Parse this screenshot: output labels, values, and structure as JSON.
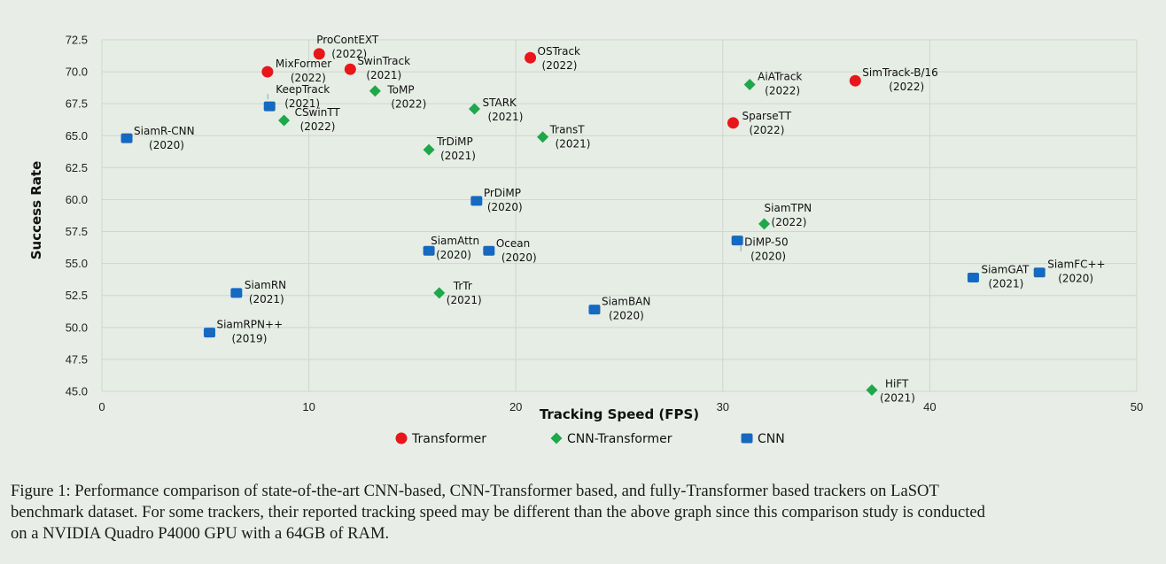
{
  "chart_data": {
    "type": "scatter",
    "xlabel": "Tracking Speed (FPS)",
    "ylabel": "Success Rate",
    "xlim": [
      0,
      50
    ],
    "ylim": [
      45.0,
      72.5
    ],
    "xticks": [
      "0",
      "10",
      "20",
      "30",
      "40",
      "50"
    ],
    "yticks": [
      "45.0",
      "47.5",
      "50.0",
      "52.5",
      "55.0",
      "57.5",
      "60.0",
      "62.5",
      "65.0",
      "67.5",
      "70.0",
      "72.5"
    ],
    "grid": true,
    "legend_position": "bottom",
    "series": [
      {
        "name": "Transformer",
        "marker": "circle",
        "color": "#e8161b",
        "points": [
          {
            "name": "ProContEXT",
            "year": "(2022)",
            "x": 10.5,
            "y": 71.4
          },
          {
            "name": "MixFormer",
            "year": "(2022)",
            "x": 8.0,
            "y": 70.0
          },
          {
            "name": "SwinTrack",
            "year": "(2021)",
            "x": 12.0,
            "y": 70.2
          },
          {
            "name": "OSTrack",
            "year": "(2022)",
            "x": 20.7,
            "y": 71.1
          },
          {
            "name": "SimTrack-B/16",
            "year": "(2022)",
            "x": 36.4,
            "y": 69.3
          },
          {
            "name": "SparseTT",
            "year": "(2022)",
            "x": 30.5,
            "y": 66.0
          }
        ]
      },
      {
        "name": "CNN-Transformer",
        "marker": "diamond",
        "color": "#1ea84a",
        "points": [
          {
            "name": "CSwinTT",
            "year": "(2022)",
            "x": 8.8,
            "y": 66.2
          },
          {
            "name": "ToMP",
            "year": "(2022)",
            "x": 13.2,
            "y": 68.5
          },
          {
            "name": "STARK",
            "year": "(2021)",
            "x": 18.0,
            "y": 67.1
          },
          {
            "name": "TrDiMP",
            "year": "(2021)",
            "x": 15.8,
            "y": 63.9
          },
          {
            "name": "TransT",
            "year": "(2021)",
            "x": 21.3,
            "y": 64.9
          },
          {
            "name": "AiATrack",
            "year": "(2022)",
            "x": 31.3,
            "y": 69.0
          },
          {
            "name": "SiamTPN",
            "year": "(2022)",
            "x": 32.0,
            "y": 58.1
          },
          {
            "name": "TrTr",
            "year": "(2021)",
            "x": 16.3,
            "y": 52.7
          },
          {
            "name": "HiFT",
            "year": "(2021)",
            "x": 37.2,
            "y": 45.1
          }
        ]
      },
      {
        "name": "CNN",
        "marker": "square",
        "color": "#1569c0",
        "points": [
          {
            "name": "KeepTrack",
            "year": "(2021)",
            "x": 8.1,
            "y": 67.3
          },
          {
            "name": "SiamR-CNN",
            "year": "(2020)",
            "x": 1.2,
            "y": 64.8
          },
          {
            "name": "PrDiMP",
            "year": "(2020)",
            "x": 18.1,
            "y": 59.9
          },
          {
            "name": "SiamAttn",
            "year": "(2020)",
            "x": 15.8,
            "y": 56.0
          },
          {
            "name": "Ocean",
            "year": "(2020)",
            "x": 18.7,
            "y": 56.0
          },
          {
            "name": "DiMP-50",
            "year": "(2020)",
            "x": 30.7,
            "y": 56.8
          },
          {
            "name": "SiamRN",
            "year": "(2021)",
            "x": 6.5,
            "y": 52.7
          },
          {
            "name": "SiamRPN++",
            "year": "(2019)",
            "x": 5.2,
            "y": 49.6
          },
          {
            "name": "SiamBAN",
            "year": "(2020)",
            "x": 23.8,
            "y": 51.4
          },
          {
            "name": "SiamGAT",
            "year": "(2021)",
            "x": 42.1,
            "y": 53.9
          },
          {
            "name": "SiamFC++",
            "year": "(2020)",
            "x": 45.3,
            "y": 54.3
          }
        ]
      }
    ]
  },
  "caption": {
    "line1": "Figure 1: Performance comparison of state-of-the-art CNN-based, CNN-Transformer based, and fully-Transformer based trackers on LaSOT",
    "line2": "benchmark dataset. For some trackers, their reported tracking speed may be different than the above graph since this comparison study is conducted",
    "line3": "on a NVIDIA Quadro P4000 GPU with a 64GB of RAM."
  }
}
